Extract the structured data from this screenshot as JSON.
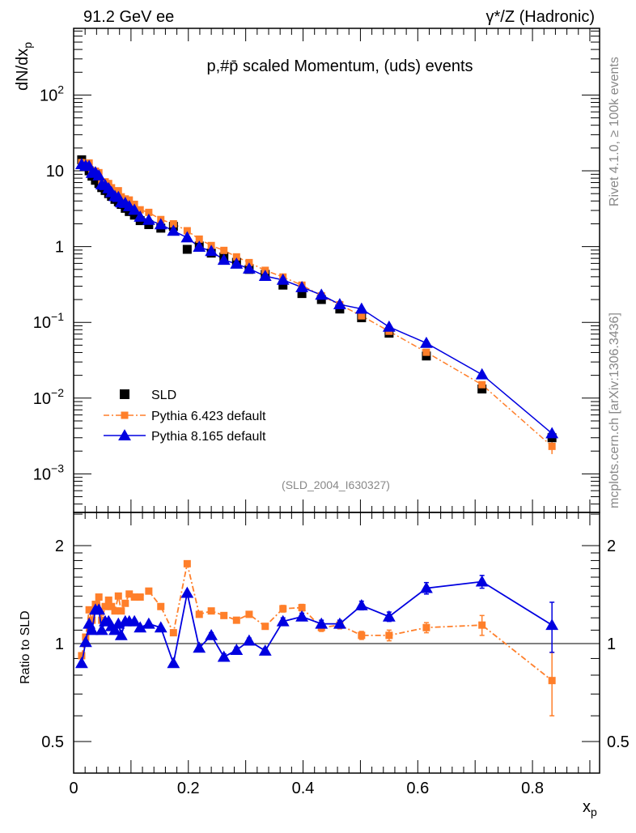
{
  "header": {
    "left": "91.2 GeV ee",
    "right": "γ*/Z (Hadronic)"
  },
  "side_text": {
    "rivet": "Rivet 4.1.0, ≥ 100k events",
    "mcplots": "mcplots.cern.ch [arXiv:1306.3436]"
  },
  "chart_data": [
    {
      "type": "scatter",
      "title": "p,#p̄ scaled Momentum, (uds) events",
      "ylabel": "dN/dx",
      "ylabel_sub": "p",
      "yscale": "log",
      "ylim": [
        0.00031,
        760
      ],
      "xlim": [
        0,
        0.917
      ],
      "yticks": [
        {
          "value": 0.001,
          "base": "10",
          "exp": "−3"
        },
        {
          "value": 0.01,
          "base": "10",
          "exp": "−2"
        },
        {
          "value": 0.1,
          "base": "10",
          "exp": "−1"
        },
        {
          "value": 1,
          "base": "1",
          "exp": ""
        },
        {
          "value": 10,
          "base": "10",
          "exp": ""
        },
        {
          "value": 100,
          "base": "10",
          "exp": "2"
        }
      ],
      "annotation": "(SLD_2004_I630327)",
      "legend_position": "bottom-left",
      "x": [
        0.014,
        0.021,
        0.027,
        0.032,
        0.038,
        0.044,
        0.049,
        0.055,
        0.061,
        0.066,
        0.072,
        0.078,
        0.083,
        0.09,
        0.097,
        0.106,
        0.116,
        0.131,
        0.152,
        0.174,
        0.198,
        0.219,
        0.24,
        0.262,
        0.284,
        0.306,
        0.334,
        0.365,
        0.398,
        0.432,
        0.464,
        0.502,
        0.55,
        0.615,
        0.712,
        0.834
      ],
      "series": [
        {
          "name": "SLD",
          "color": "#000000",
          "marker": "square",
          "values": [
            14,
            11.5,
            10,
            8.5,
            7.5,
            6.8,
            6.0,
            5.5,
            5.0,
            4.6,
            4.2,
            3.9,
            3.6,
            3.2,
            2.9,
            2.6,
            2.2,
            1.95,
            1.75,
            1.85,
            0.92,
            1.02,
            0.82,
            0.73,
            0.62,
            0.5,
            0.43,
            0.31,
            0.24,
            0.2,
            0.15,
            0.115,
            0.072,
            0.036,
            0.0132,
            0.003
          ]
        },
        {
          "name": "Pythia 6.423 default",
          "color": "#ff7f2a",
          "marker": "square",
          "line": "dash-dot",
          "ratio": [
            0.918,
            1.047,
            1.27,
            1.18,
            1.32,
            1.39,
            1.18,
            1.3,
            1.36,
            1.3,
            1.26,
            1.4,
            1.26,
            1.33,
            1.42,
            1.39,
            1.39,
            1.45,
            1.3,
            1.08,
            1.76,
            1.23,
            1.26,
            1.22,
            1.18,
            1.23,
            1.13,
            1.28,
            1.29,
            1.12,
            1.14,
            1.06,
            1.06,
            1.12,
            1.14,
            0.77
          ],
          "ratio_err": [
            0,
            0,
            0,
            0,
            0,
            0,
            0,
            0,
            0,
            0,
            0,
            0,
            0,
            0,
            0,
            0,
            0,
            0,
            0,
            0,
            0,
            0.02,
            0.02,
            0.02,
            0.02,
            0.02,
            0.02,
            0.03,
            0.03,
            0.03,
            0.03,
            0.03,
            0.04,
            0.04,
            0.08,
            0.17
          ]
        },
        {
          "name": "Pythia 8.165 default",
          "color": "#0000e0",
          "marker": "triangle",
          "line": "solid",
          "ratio": [
            0.87,
            1.01,
            1.15,
            1.1,
            1.27,
            1.27,
            1.1,
            1.17,
            1.17,
            1.13,
            1.1,
            1.15,
            1.06,
            1.17,
            1.17,
            1.17,
            1.12,
            1.15,
            1.12,
            0.87,
            1.43,
            0.97,
            1.06,
            0.91,
            0.955,
            1.02,
            0.95,
            1.17,
            1.21,
            1.15,
            1.15,
            1.31,
            1.21,
            1.48,
            1.55,
            1.14
          ],
          "ratio_err": [
            0,
            0,
            0,
            0,
            0,
            0,
            0,
            0,
            0,
            0,
            0,
            0,
            0,
            0,
            0,
            0,
            0,
            0,
            0,
            0,
            0,
            0.02,
            0.02,
            0.02,
            0.02,
            0.02,
            0.02,
            0.03,
            0.03,
            0.03,
            0.03,
            0.04,
            0.04,
            0.06,
            0.07,
            0.2
          ]
        }
      ]
    },
    {
      "type": "line",
      "ylabel": "Ratio to SLD",
      "yscale": "log",
      "ylim": [
        0.4,
        2.53
      ],
      "yticks": [
        {
          "value": 0.5,
          "label": "0.5"
        },
        {
          "value": 1,
          "label": "1"
        },
        {
          "value": 2,
          "label": "2"
        }
      ],
      "xlabel": "x",
      "xlabel_sub": "p",
      "xticks": [
        {
          "value": 0,
          "label": "0"
        },
        {
          "value": 0.2,
          "label": "0.2"
        },
        {
          "value": 0.4,
          "label": "0.4"
        },
        {
          "value": 0.6,
          "label": "0.6"
        },
        {
          "value": 0.8,
          "label": "0.8"
        }
      ]
    }
  ]
}
